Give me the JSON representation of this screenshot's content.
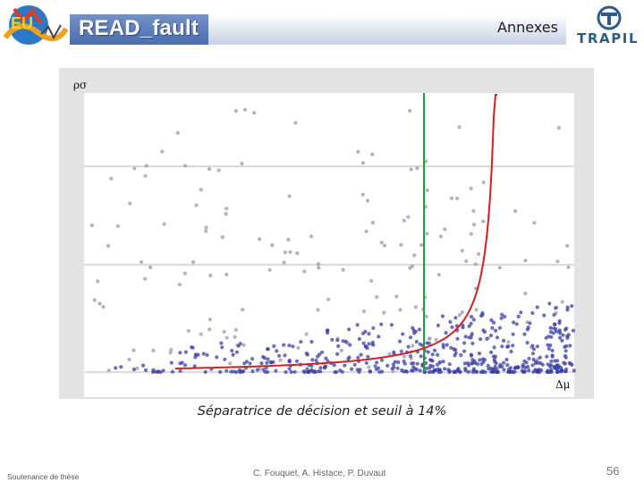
{
  "header": {
    "title": "READ_fault",
    "section": "Annexes",
    "left_logo_icon": "conference-logo-icon",
    "right_logo_icon": "trapil-logo-icon",
    "right_logo_text": "TRAPIL"
  },
  "plot": {
    "ylabel": "ρσ",
    "xlabel": "Δμ",
    "background": "#ffffff",
    "frame_color": "#e3e3e3",
    "grid_color": "#d9d9d9",
    "point_color_sparse": "#9a9aa8",
    "point_color_dense": "#3a3fa8",
    "curve_color": "#d42020",
    "threshold_color": "#1fa03a"
  },
  "caption": "Séparatrice de décision et seuil à 14%",
  "footer": {
    "left": "Soutenance de thèse",
    "center": "C. Fouquet, A. Histace,  P. Duvaut",
    "page": "56"
  }
}
